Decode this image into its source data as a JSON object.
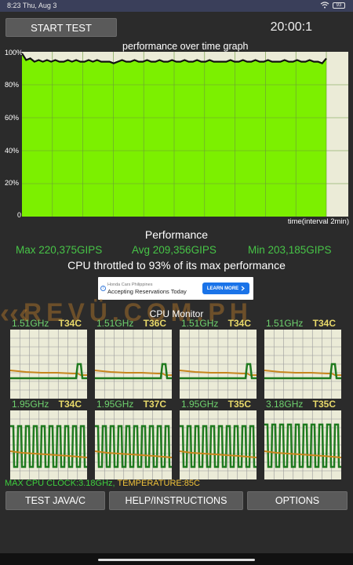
{
  "status_bar": {
    "time": "8:23 Thu, Aug 3",
    "battery": "93"
  },
  "toolbar": {
    "start_label": "START TEST",
    "timer": "20:00:1"
  },
  "graph": {
    "title": "performance over time graph",
    "y_ticks": [
      "100%",
      "80%",
      "60%",
      "40%",
      "20%",
      "0"
    ],
    "x_label": "time(interval 2min)",
    "fill_color": "#7cf000",
    "line_color": "#111111",
    "background_color": "#ebebd7"
  },
  "chart_data": {
    "type": "area",
    "title": "performance over time graph",
    "xlabel": "time(interval 2min)",
    "ylabel": "",
    "ylim": [
      0,
      100
    ],
    "grid": true,
    "x_interval_minutes": 2,
    "series": [
      {
        "values": [
          99,
          95,
          96,
          94,
          95,
          94,
          95,
          94,
          95,
          94,
          94,
          95,
          94,
          95,
          94,
          94,
          95,
          94,
          95,
          94,
          94,
          94,
          93,
          94,
          95,
          94,
          94,
          95,
          94,
          94,
          95,
          94,
          94,
          95,
          94,
          94,
          95,
          94,
          94,
          95,
          94,
          94,
          95,
          94,
          94,
          95,
          94,
          94,
          94,
          94,
          95,
          94,
          94,
          95,
          94,
          94,
          95,
          94,
          94,
          95,
          94,
          94,
          94,
          95,
          94,
          94,
          95,
          94,
          94,
          95,
          94,
          94,
          93,
          96
        ]
      }
    ]
  },
  "performance": {
    "heading": "Performance",
    "max": "Max 220,375GIPS",
    "avg": "Avg 209,356GIPS",
    "min": "Min 203,185GIPS",
    "throttle": "CPU throttled to 93% of its max performance"
  },
  "ad": {
    "advertiser": "Honda Cars Philippines",
    "headline": "Accepting Reservations Today",
    "cta": "LEARN MORE",
    "info": "i"
  },
  "watermark": {
    "text": "REVÜ.COM.PH",
    "chevrons": "‹‹‹"
  },
  "cpu_monitor": {
    "title": "CPU Monitor",
    "cores": [
      {
        "freq": "1.51GHz",
        "temp": "T34C",
        "busy": false
      },
      {
        "freq": "1.51GHz",
        "temp": "T36C",
        "busy": false
      },
      {
        "freq": "1.51GHz",
        "temp": "T34C",
        "busy": false
      },
      {
        "freq": "1.51GHz",
        "temp": "T34C",
        "busy": false
      },
      {
        "freq": "1.95GHz",
        "temp": "T34C",
        "busy": true
      },
      {
        "freq": "1.95GHz",
        "temp": "T37C",
        "busy": true
      },
      {
        "freq": "1.95GHz",
        "temp": "T35C",
        "busy": true
      },
      {
        "freq": "3.18GHz",
        "temp": "T35C",
        "busy": true
      }
    ],
    "max_clock": "MAX CPU CLOCK:3.18GHz,",
    "max_temp": " TEMPERATURE:85C"
  },
  "buttons": {
    "test_java": "TEST JAVA/C",
    "help": "HELP/INSTRUCTIONS",
    "options": "OPTIONS"
  }
}
